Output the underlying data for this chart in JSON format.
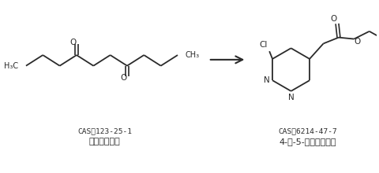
{
  "background_color": "#ffffff",
  "cas1": "CAS：123-25-1",
  "name1": "丁二酸二乙酩",
  "cas2": "CAS：6214-47-7",
  "name2": "4-氯-5-嘴啄乙酸乙酩",
  "text_color": "#2a2a2a",
  "line_color": "#2a2a2a",
  "bond_lw": 1.3,
  "font_size_cas": 6.8,
  "font_size_name": 8.0,
  "font_size_atom": 7.0
}
